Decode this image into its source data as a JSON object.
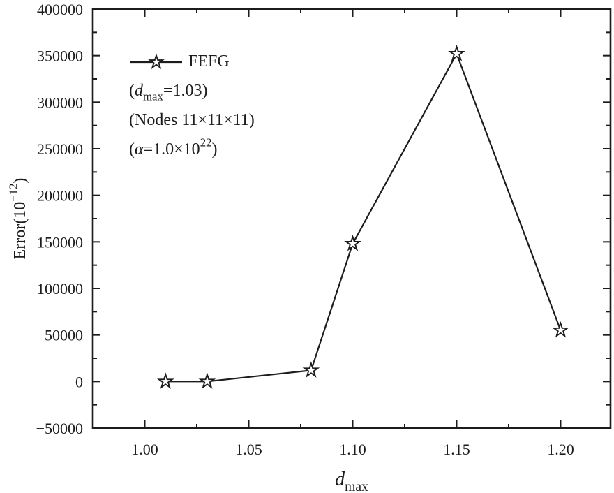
{
  "figure": {
    "background_color": "#ffffff",
    "ink_color": "#1c1c1c"
  },
  "chart_data": {
    "type": "line",
    "title": "",
    "xlabel": "d_max",
    "ylabel": "Error(10^-12)",
    "xlabel_parts": [
      {
        "t": "d",
        "style": "italic"
      },
      {
        "t": "max",
        "sub": true
      }
    ],
    "ylabel_parts": [
      {
        "t": "Error(10"
      },
      {
        "t": "−12",
        "sup": true
      },
      {
        "t": ")"
      }
    ],
    "xlim": [
      0.975,
      1.224
    ],
    "ylim": [
      -50000,
      400000
    ],
    "grid": false,
    "x_ticks": [
      1.0,
      1.05,
      1.1,
      1.15,
      1.2
    ],
    "x_tick_labels": [
      "1.00",
      "1.05",
      "1.10",
      "1.15",
      "1.20"
    ],
    "x_minor_ticks": [
      1.025,
      1.075,
      1.125,
      1.175
    ],
    "y_ticks": [
      400000,
      350000,
      300000,
      250000,
      200000,
      150000,
      100000,
      50000,
      0,
      -50000
    ],
    "y_tick_labels": [
      "400000",
      "350000",
      "300000",
      "250000",
      "200000",
      "150000",
      "100000",
      "50000",
      "0",
      "−50000"
    ],
    "y_minor_ticks": [
      375000,
      325000,
      275000,
      225000,
      175000,
      125000,
      75000,
      25000,
      -25000
    ],
    "series": [
      {
        "name": "FEFG",
        "marker": "open-star",
        "color": "#1c1c1c",
        "x": [
          1.01,
          1.03,
          1.08,
          1.1,
          1.15,
          1.2
        ],
        "y": [
          0,
          0,
          12000,
          148000,
          352000,
          55000
        ]
      }
    ],
    "legend": {
      "position": "upper-left-inside",
      "entries": [
        {
          "text": "FEFG",
          "has_marker": true,
          "parts": [
            {
              "t": "FEFG"
            }
          ]
        },
        {
          "text": "(dmax=1.03)",
          "has_marker": false,
          "parts": [
            {
              "t": "("
            },
            {
              "t": "d",
              "style": "italic"
            },
            {
              "t": "max",
              "sub": true
            },
            {
              "t": "=1.03)"
            }
          ]
        },
        {
          "text": "(Nodes 11×11×11)",
          "has_marker": false,
          "parts": [
            {
              "t": "(Nodes 11×11×11)"
            }
          ]
        },
        {
          "text": "(α=1.0×10^22)",
          "has_marker": false,
          "parts": [
            {
              "t": "("
            },
            {
              "t": "α",
              "style": "italic"
            },
            {
              "t": "=1.0×10"
            },
            {
              "t": "22",
              "sup": true
            },
            {
              "t": ")"
            }
          ]
        }
      ]
    }
  }
}
